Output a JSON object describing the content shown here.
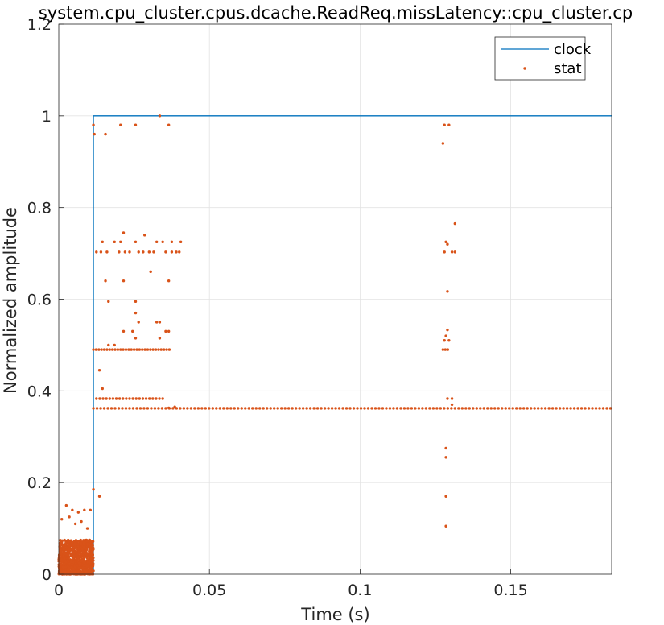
{
  "chart_data": {
    "type": "scatter",
    "title": "system.cpu_cluster.cpus.dcache.ReadReq.missLatency::cpu_cluster.cp",
    "xlabel": "Time (s)",
    "ylabel": "Normalized amplitude",
    "xlim": [
      0,
      0.1835
    ],
    "ylim": [
      0,
      1.2
    ],
    "x_ticks": [
      0,
      0.05,
      0.1,
      0.15
    ],
    "x_tick_labels": [
      "0",
      "0.05",
      "0.1",
      "0.15"
    ],
    "y_ticks": [
      0,
      0.2,
      0.4,
      0.6,
      0.8,
      1.0,
      1.2
    ],
    "y_tick_labels": [
      "0",
      "0.2",
      "0.4",
      "0.6",
      "0.8",
      "1",
      "1.2"
    ],
    "grid": true,
    "legend_position": "top-right",
    "series": [
      {
        "name": "clock",
        "kind": "line",
        "color": "#0072BD",
        "points": [
          [
            0,
            0
          ],
          [
            0.0115,
            0
          ],
          [
            0.0115,
            1
          ],
          [
            0.1835,
            1
          ]
        ]
      },
      {
        "name": "stat",
        "kind": "points",
        "color": "#D95319",
        "points": [
          [
            0.0115,
            0.98
          ],
          [
            0.0118,
            0.96
          ],
          [
            0.0155,
            0.96
          ],
          [
            0.0205,
            0.98
          ],
          [
            0.0255,
            0.98
          ],
          [
            0.0335,
            1.0
          ],
          [
            0.0365,
            0.98
          ],
          [
            0.128,
            0.98
          ],
          [
            0.1295,
            0.98
          ],
          [
            0.1275,
            0.94
          ],
          [
            0.0215,
            0.745
          ],
          [
            0.0285,
            0.74
          ],
          [
            0.0375,
            0.725
          ],
          [
            0.0405,
            0.725
          ],
          [
            0.0125,
            0.703
          ],
          [
            0.014,
            0.703
          ],
          [
            0.016,
            0.703
          ],
          [
            0.02,
            0.703
          ],
          [
            0.022,
            0.703
          ],
          [
            0.0235,
            0.703
          ],
          [
            0.0265,
            0.703
          ],
          [
            0.028,
            0.703
          ],
          [
            0.03,
            0.703
          ],
          [
            0.0315,
            0.703
          ],
          [
            0.0355,
            0.703
          ],
          [
            0.0375,
            0.703
          ],
          [
            0.039,
            0.703
          ],
          [
            0.04,
            0.703
          ],
          [
            0.0145,
            0.725
          ],
          [
            0.0185,
            0.725
          ],
          [
            0.0205,
            0.725
          ],
          [
            0.0255,
            0.725
          ],
          [
            0.0325,
            0.725
          ],
          [
            0.0345,
            0.725
          ],
          [
            0.0305,
            0.66
          ],
          [
            0.0155,
            0.64
          ],
          [
            0.0215,
            0.64
          ],
          [
            0.0365,
            0.64
          ],
          [
            0.0165,
            0.595
          ],
          [
            0.0255,
            0.595
          ],
          [
            0.0255,
            0.57
          ],
          [
            0.0265,
            0.55
          ],
          [
            0.0215,
            0.53
          ],
          [
            0.0325,
            0.55
          ],
          [
            0.0335,
            0.55
          ],
          [
            0.0335,
            0.515
          ],
          [
            0.0355,
            0.53
          ],
          [
            0.0365,
            0.53
          ],
          [
            0.0245,
            0.53
          ],
          [
            0.0255,
            0.515
          ],
          [
            0.0165,
            0.5
          ],
          [
            0.0185,
            0.5
          ],
          [
            0.0135,
            0.445
          ],
          [
            0.0145,
            0.405
          ],
          [
            0.0385,
            0.365
          ],
          [
            0.0365,
            0.363
          ],
          [
            0.1285,
            0.725
          ],
          [
            0.129,
            0.72
          ],
          [
            0.128,
            0.703
          ],
          [
            0.1305,
            0.703
          ],
          [
            0.1315,
            0.703
          ],
          [
            0.1315,
            0.765
          ],
          [
            0.129,
            0.617
          ],
          [
            0.129,
            0.533
          ],
          [
            0.1285,
            0.52
          ],
          [
            0.128,
            0.51
          ],
          [
            0.1295,
            0.51
          ],
          [
            0.129,
            0.383
          ],
          [
            0.1305,
            0.383
          ],
          [
            0.1305,
            0.37
          ],
          [
            0.1285,
            0.275
          ],
          [
            0.1285,
            0.255
          ],
          [
            0.1285,
            0.17
          ],
          [
            0.1285,
            0.105
          ],
          [
            0.0115,
            0.185
          ],
          [
            0.0135,
            0.17
          ],
          [
            0.0025,
            0.15
          ],
          [
            0.0045,
            0.14
          ],
          [
            0.0065,
            0.135
          ],
          [
            0.0085,
            0.14
          ],
          [
            0.0105,
            0.14
          ],
          [
            0.001,
            0.12
          ],
          [
            0.0035,
            0.125
          ],
          [
            0.0055,
            0.11
          ],
          [
            0.0075,
            0.115
          ],
          [
            0.0095,
            0.1
          ]
        ],
        "rows": [
          {
            "y": 0.49,
            "x_from": 0.0115,
            "x_to": 0.0375,
            "step": 0.0009
          },
          {
            "y": 0.383,
            "x_from": 0.0125,
            "x_to": 0.0355,
            "step": 0.0011
          },
          {
            "y": 0.362,
            "x_from": 0.0115,
            "x_to": 0.1835,
            "step": 0.0012
          },
          {
            "y": 0.49,
            "x_from": 0.1275,
            "x_to": 0.1295,
            "step": 0.0008
          }
        ],
        "cluster": {
          "x_from": 0.0,
          "x_to": 0.0115,
          "y_from": 0.0,
          "y_to": 0.075,
          "count": 900
        }
      }
    ]
  }
}
